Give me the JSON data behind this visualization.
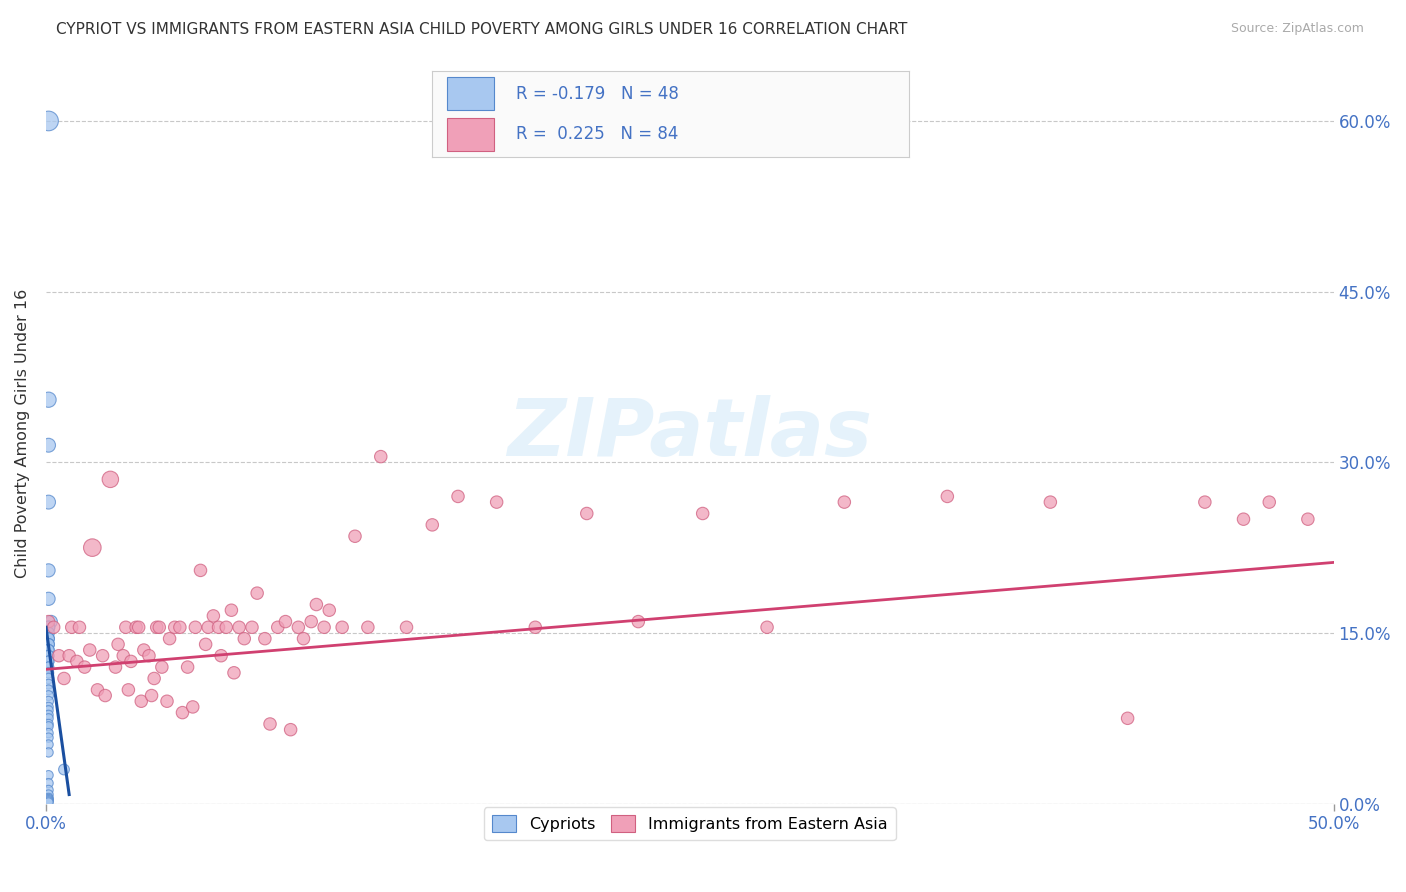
{
  "title": "CYPRIOT VS IMMIGRANTS FROM EASTERN ASIA CHILD POVERTY AMONG GIRLS UNDER 16 CORRELATION CHART",
  "source": "Source: ZipAtlas.com",
  "ylabel": "Child Poverty Among Girls Under 16",
  "xlim": [
    0.0,
    0.5
  ],
  "ylim": [
    0.0,
    0.65
  ],
  "xticks": [
    0.0,
    0.5
  ],
  "xticklabels": [
    "0.0%",
    "50.0%"
  ],
  "yticks": [
    0.0,
    0.15,
    0.3,
    0.45,
    0.6
  ],
  "yticklabels": [
    "0.0%",
    "15.0%",
    "30.0%",
    "45.0%",
    "60.0%"
  ],
  "grid_color": "#c8c8c8",
  "background_color": "#ffffff",
  "watermark": "ZIPatlas",
  "cypriot_color": "#a8c8f0",
  "immigrant_color": "#f0a0b8",
  "cypriot_edge_color": "#5588cc",
  "immigrant_edge_color": "#d06080",
  "cypriot_line_color": "#1a4fa0",
  "immigrant_line_color": "#d04070",
  "label_cypriot": "Cypriots",
  "label_immigrant": "Immigrants from Eastern Asia",
  "legend_R1": "R = -0.179",
  "legend_N1": "N = 48",
  "legend_R2": "R =  0.225",
  "legend_N2": "N = 84",
  "cypriot_scatter_x": [
    0.001,
    0.001,
    0.001,
    0.001,
    0.001,
    0.001,
    0.002,
    0.001,
    0.001,
    0.001,
    0.001,
    0.001,
    0.001,
    0.001,
    0.001,
    0.001,
    0.001,
    0.001,
    0.001,
    0.001,
    0.001,
    0.001,
    0.001,
    0.001,
    0.001,
    0.001,
    0.001,
    0.001,
    0.001,
    0.001,
    0.001,
    0.001,
    0.001,
    0.001,
    0.001,
    0.001,
    0.001,
    0.001,
    0.007,
    0.001,
    0.001,
    0.001,
    0.001,
    0.001,
    0.001,
    0.001,
    0.001,
    0.001
  ],
  "cypriot_scatter_y": [
    0.6,
    0.355,
    0.315,
    0.265,
    0.205,
    0.18,
    0.16,
    0.155,
    0.155,
    0.15,
    0.145,
    0.145,
    0.14,
    0.14,
    0.135,
    0.135,
    0.13,
    0.13,
    0.125,
    0.125,
    0.12,
    0.12,
    0.115,
    0.11,
    0.105,
    0.1,
    0.095,
    0.09,
    0.085,
    0.082,
    0.078,
    0.075,
    0.07,
    0.068,
    0.062,
    0.058,
    0.052,
    0.045,
    0.03,
    0.025,
    0.018,
    0.012,
    0.008,
    0.005,
    0.004,
    0.003,
    0.002,
    0.001
  ],
  "cypriot_scatter_s": [
    200,
    120,
    100,
    100,
    90,
    90,
    80,
    80,
    80,
    70,
    70,
    70,
    70,
    70,
    65,
    65,
    60,
    60,
    60,
    60,
    55,
    55,
    55,
    55,
    50,
    50,
    50,
    50,
    45,
    45,
    45,
    45,
    45,
    45,
    45,
    45,
    45,
    45,
    60,
    45,
    45,
    45,
    45,
    45,
    45,
    45,
    45,
    45
  ],
  "immigrant_scatter_x": [
    0.001,
    0.003,
    0.005,
    0.007,
    0.009,
    0.01,
    0.012,
    0.013,
    0.015,
    0.017,
    0.018,
    0.02,
    0.022,
    0.023,
    0.025,
    0.027,
    0.028,
    0.03,
    0.031,
    0.032,
    0.033,
    0.035,
    0.036,
    0.037,
    0.038,
    0.04,
    0.041,
    0.042,
    0.043,
    0.044,
    0.045,
    0.047,
    0.048,
    0.05,
    0.052,
    0.053,
    0.055,
    0.057,
    0.058,
    0.06,
    0.062,
    0.063,
    0.065,
    0.067,
    0.068,
    0.07,
    0.072,
    0.073,
    0.075,
    0.077,
    0.08,
    0.082,
    0.085,
    0.087,
    0.09,
    0.093,
    0.095,
    0.098,
    0.1,
    0.103,
    0.105,
    0.108,
    0.11,
    0.115,
    0.12,
    0.125,
    0.13,
    0.14,
    0.15,
    0.16,
    0.175,
    0.19,
    0.21,
    0.23,
    0.255,
    0.28,
    0.31,
    0.35,
    0.39,
    0.42,
    0.45,
    0.465,
    0.475,
    0.49
  ],
  "immigrant_scatter_y": [
    0.16,
    0.155,
    0.13,
    0.11,
    0.13,
    0.155,
    0.125,
    0.155,
    0.12,
    0.135,
    0.225,
    0.1,
    0.13,
    0.095,
    0.285,
    0.12,
    0.14,
    0.13,
    0.155,
    0.1,
    0.125,
    0.155,
    0.155,
    0.09,
    0.135,
    0.13,
    0.095,
    0.11,
    0.155,
    0.155,
    0.12,
    0.09,
    0.145,
    0.155,
    0.155,
    0.08,
    0.12,
    0.085,
    0.155,
    0.205,
    0.14,
    0.155,
    0.165,
    0.155,
    0.13,
    0.155,
    0.17,
    0.115,
    0.155,
    0.145,
    0.155,
    0.185,
    0.145,
    0.07,
    0.155,
    0.16,
    0.065,
    0.155,
    0.145,
    0.16,
    0.175,
    0.155,
    0.17,
    0.155,
    0.235,
    0.155,
    0.305,
    0.155,
    0.245,
    0.27,
    0.265,
    0.155,
    0.255,
    0.16,
    0.255,
    0.155,
    0.265,
    0.27,
    0.265,
    0.075,
    0.265,
    0.25,
    0.265,
    0.25
  ],
  "immigrant_scatter_s": [
    80,
    80,
    80,
    80,
    80,
    80,
    80,
    80,
    80,
    80,
    160,
    80,
    80,
    80,
    140,
    80,
    80,
    80,
    80,
    80,
    80,
    80,
    80,
    80,
    80,
    80,
    80,
    80,
    80,
    80,
    80,
    80,
    80,
    80,
    80,
    80,
    80,
    80,
    80,
    80,
    80,
    80,
    80,
    80,
    80,
    80,
    80,
    80,
    80,
    80,
    80,
    80,
    80,
    80,
    80,
    80,
    80,
    80,
    80,
    80,
    80,
    80,
    80,
    80,
    80,
    80,
    80,
    80,
    80,
    80,
    80,
    80,
    80,
    80,
    80,
    80,
    80,
    80,
    80,
    80,
    80,
    80,
    80,
    80
  ],
  "cypriot_line_x": [
    0.0,
    0.009
  ],
  "cypriot_line_y": [
    0.155,
    0.008
  ],
  "immigrant_line_x": [
    0.0,
    0.5
  ],
  "immigrant_line_y": [
    0.118,
    0.212
  ]
}
